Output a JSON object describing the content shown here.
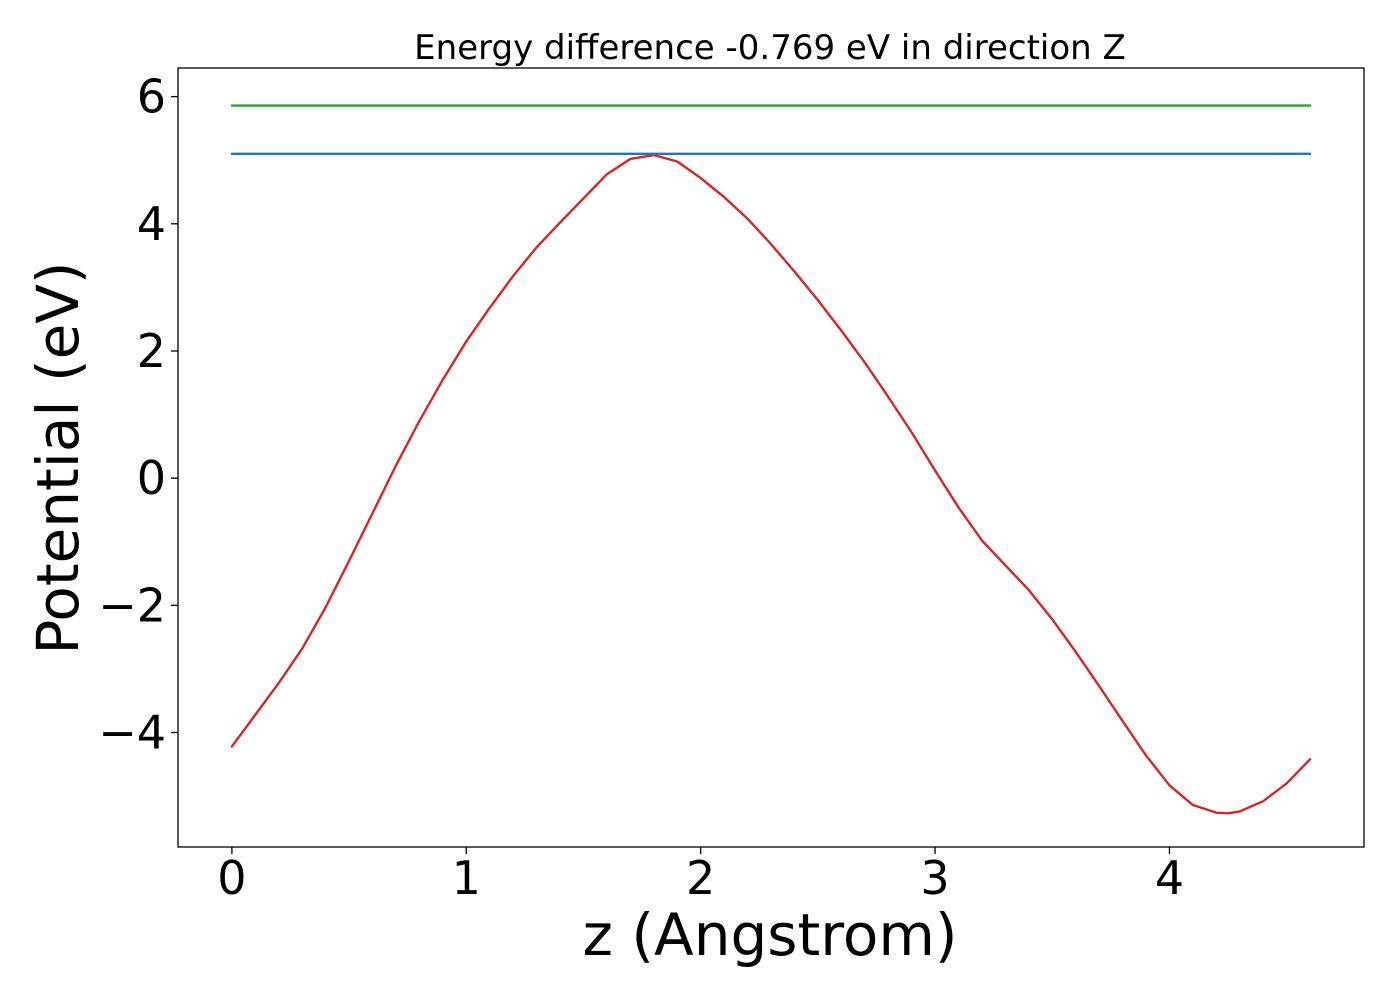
{
  "chart_data": {
    "type": "line",
    "title": "Energy difference -0.769 eV in direction Z",
    "xlabel": "z (Angstrom)",
    "ylabel": "Potential (eV)",
    "xlim": [
      -0.23,
      4.83
    ],
    "ylim": [
      -5.8,
      6.45
    ],
    "grid": false,
    "xticks": [
      0,
      1,
      2,
      3,
      4
    ],
    "xtick_labels": [
      "0",
      "1",
      "2",
      "3",
      "4"
    ],
    "yticks": [
      -4,
      -2,
      0,
      2,
      4,
      6
    ],
    "ytick_labels": [
      "−4",
      "−2",
      "0",
      "2",
      "4",
      "6"
    ],
    "series": [
      {
        "color": "#d62728",
        "x": [
          0,
          0.1,
          0.2,
          0.3,
          0.4,
          0.5,
          0.6,
          0.7,
          0.8,
          0.9,
          1.0,
          1.1,
          1.2,
          1.3,
          1.4,
          1.5,
          1.6,
          1.7,
          1.8,
          1.9,
          2.0,
          2.1,
          2.2,
          2.3,
          2.4,
          2.5,
          2.6,
          2.7,
          2.8,
          2.9,
          3.0,
          3.1,
          3.2,
          3.3,
          3.4,
          3.5,
          3.6,
          3.7,
          3.8,
          3.9,
          4.0,
          4.1,
          4.2,
          4.25,
          4.3,
          4.4,
          4.5,
          4.6
        ],
        "y": [
          -4.22,
          -3.72,
          -3.22,
          -2.68,
          -2.03,
          -1.3,
          -0.55,
          0.2,
          0.9,
          1.55,
          2.15,
          2.68,
          3.18,
          3.63,
          4.02,
          4.4,
          4.78,
          5.02,
          5.08,
          4.98,
          4.72,
          4.42,
          4.08,
          3.68,
          3.25,
          2.8,
          2.32,
          1.82,
          1.28,
          0.72,
          0.12,
          -0.46,
          -0.98,
          -1.37,
          -1.76,
          -2.22,
          -2.73,
          -3.27,
          -3.82,
          -4.36,
          -4.83,
          -5.14,
          -5.26,
          -5.27,
          -5.24,
          -5.08,
          -4.8,
          -4.42
        ]
      },
      {
        "color": "#1f77b4",
        "x": [
          0,
          4.6
        ],
        "y": [
          5.1,
          5.1
        ]
      },
      {
        "color": "#2ca02c",
        "x": [
          0,
          4.6
        ],
        "y": [
          5.86,
          5.86
        ]
      }
    ]
  }
}
